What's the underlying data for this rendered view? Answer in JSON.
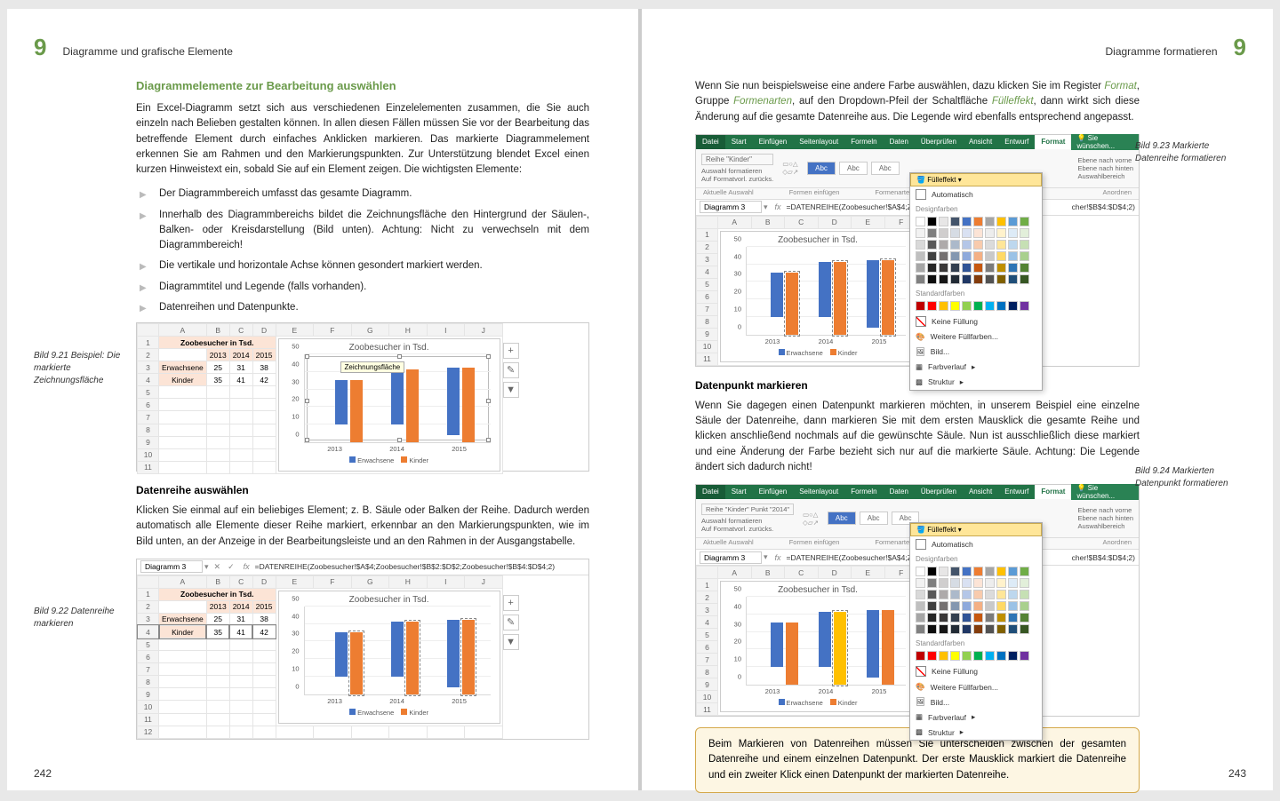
{
  "left": {
    "chapter_num": "9",
    "chapter_title": "Diagramme und grafische Elemente",
    "page_num": "242",
    "heading": "Diagrammelemente zur Bearbeitung auswählen",
    "para1": "Ein Excel-Diagramm setzt sich aus verschiedenen Einzelelementen zusammen, die Sie auch einzeln nach Belieben gestalten können. In allen diesen Fällen müssen Sie vor der Bearbeitung das betreffende Element durch einfaches Anklicken markieren. Das markierte Diagrammelement erkennen Sie am Rahmen und den Markierungspunkten. Zur Unterstützung blendet Excel einen kurzen Hinweistext ein, sobald Sie auf ein Element zeigen. Die wichtigsten Elemente:",
    "bullets": [
      "Der Diagrammbereich umfasst das gesamte Diagramm.",
      "Innerhalb des Diagrammbereichs bildet die Zeichnungsfläche den Hintergrund der Säulen-, Balken- oder Kreisdarstellung (Bild unten). Achtung: Nicht zu verwechseln mit dem Diagrammbereich!",
      "Die vertikale und horizontale Achse können gesondert markiert werden.",
      "Diagrammtitel und Legende (falls vorhanden).",
      "Datenreihen und Datenpunkte."
    ],
    "caption1": "Bild 9.21 Beispiel: Die markierte Zeichnungsfläche",
    "sub1": "Datenreihe auswählen",
    "para2": "Klicken Sie einmal auf ein beliebiges Element; z. B. Säule oder Balken der Reihe. Dadurch werden automatisch alle Elemente dieser Reihe markiert, erkennbar an den Markierungspunkten, wie im Bild unten, an der Anzeige in der Bearbeitungsleiste und an den Rahmen in der Ausgangstabelle.",
    "caption2": "Bild 9.22 Datenreihe markieren",
    "fig": {
      "table_title": "Zoobesucher in Tsd.",
      "years": [
        "2013",
        "2014",
        "2015"
      ],
      "rows": [
        {
          "label": "Erwachsene",
          "vals": [
            "25",
            "31",
            "38"
          ]
        },
        {
          "label": "Kinder",
          "vals": [
            "35",
            "41",
            "42"
          ]
        }
      ],
      "chart_title": "Zoobesucher in Tsd.",
      "y_ticks": [
        "0",
        "10",
        "20",
        "30",
        "40",
        "50"
      ],
      "tooltip": "Zeichnungsfläche",
      "legend": [
        "Erwachsene",
        "Kinder"
      ],
      "name_box": "Diagramm 3",
      "formula": "=DATENREIHE(Zoobesucher!$A$4;Zoobesucher!$B$2:$D$2;Zoobesucher!$B$4:$D$4;2)",
      "colors": {
        "s1": "#4472c4",
        "s2": "#ed7d31"
      },
      "bar_heights": {
        "s1": [
          50,
          62,
          76
        ],
        "s2": [
          70,
          82,
          84
        ]
      }
    }
  },
  "right": {
    "chapter_num": "9",
    "chapter_title": "Diagramme formatieren",
    "page_num": "243",
    "para1_pre": "Wenn Sie nun beispielsweise eine andere Farbe auswählen, dazu klicken Sie im Register ",
    "para1_em1": "Format",
    "para1_mid1": ", Gruppe ",
    "para1_em2": "Formenarten",
    "para1_mid2": ", auf den Dropdown-Pfeil der Schaltfläche ",
    "para1_em3": "Fülleffekt",
    "para1_post": ", dann wirkt sich diese Änderung auf die gesamte Datenreihe aus. Die Legende wird ebenfalls entsprechend angepasst.",
    "caption1": "Bild 9.23 Markierte Datenreihe formatieren",
    "sub1": "Datenpunkt markieren",
    "para2": "Wenn Sie dagegen einen Datenpunkt markieren möchten, in unserem Beispiel eine einzelne Säule der Datenreihe, dann markieren Sie mit dem ersten Mausklick die gesamte Reihe und klicken anschließend nochmals auf die gewünschte Säule. Nun ist ausschließlich diese markiert und eine Änderung der Farbe bezieht sich nur auf die markierte Säule. Achtung: Die Legende ändert sich dadurch nicht!",
    "caption2": "Bild 9.24 Markierten Datenpunkt formatieren",
    "callout": "Beim Markieren von Datenreihen müssen Sie unterscheiden zwischen der gesamten Datenreihe und einem einzelnen Datenpunkt. Der erste Mausklick markiert die Datenreihe und ein zweiter Klick einen Datenpunkt der markierten Datenreihe.",
    "ribbon": {
      "tabs": [
        "Datei",
        "Start",
        "Einfügen",
        "Seitenlayout",
        "Formeln",
        "Daten",
        "Überprüfen",
        "Ansicht",
        "Entwurf",
        "Format"
      ],
      "tell": "Sie wünschen...",
      "reihe1": "Reihe \"Kinder\"",
      "reihe2": "Reihe \"Kinder\" Punkt \"2014\"",
      "opt1": "Auswahl formatieren",
      "opt2": "Auf Formatvorl. zurücks.",
      "abc": "Abc",
      "group1": "Aktuelle Auswahl",
      "group2": "Formen einfügen",
      "group3": "Formenarten",
      "group4": "Anordnen",
      "fulleffekt": "Fülleffekt",
      "automatisch": "Automatisch",
      "design": "Designfarben",
      "standard": "Standardfarben",
      "keine": "Keine Füllung",
      "weitere": "Weitere Füllfarben...",
      "bild": "Bild...",
      "farbverlauf": "Farbverlauf",
      "struktur": "Struktur",
      "ebene1": "Ebene nach vorne",
      "ebene2": "Ebene nach hinten",
      "auswahlb": "Auswahlbereich",
      "formula": "=DATENREIHE(Zoobesucher!$A$4;Zoob",
      "formula_right": "cher!$B$4:$D$4;2)"
    },
    "fig": {
      "chart_title": "Zoobesucher in Tsd.",
      "y_ticks": [
        "0",
        "10",
        "20",
        "30",
        "40",
        "50"
      ],
      "years": [
        "2013",
        "2014",
        "2015"
      ],
      "legend": [
        "Erwachsene",
        "Kinder"
      ],
      "name_box": "Diagramm 3",
      "bar_heights": {
        "s1": [
          50,
          62,
          76
        ],
        "s2": [
          70,
          82,
          84
        ]
      },
      "colors": {
        "s1": "#4472c4",
        "s2": "#ed7d31",
        "highlight": "#ffc000"
      }
    },
    "theme_colors": [
      "#ffffff",
      "#000000",
      "#e7e6e6",
      "#44546a",
      "#4472c4",
      "#ed7d31",
      "#a5a5a5",
      "#ffc000",
      "#5b9bd5",
      "#70ad47"
    ],
    "theme_tints": [
      [
        "#f2f2f2",
        "#7f7f7f",
        "#d0cece",
        "#d6dce4",
        "#d9e1f2",
        "#fce4d6",
        "#ededed",
        "#fff2cc",
        "#ddebf7",
        "#e2efda"
      ],
      [
        "#d9d9d9",
        "#595959",
        "#aeaaaa",
        "#acb9ca",
        "#b4c6e7",
        "#f8cbad",
        "#dbdbdb",
        "#ffe699",
        "#bdd7ee",
        "#c6e0b4"
      ],
      [
        "#bfbfbf",
        "#404040",
        "#757171",
        "#8497b0",
        "#8ea9db",
        "#f4b084",
        "#c9c9c9",
        "#ffd966",
        "#9bc2e6",
        "#a9d08e"
      ],
      [
        "#a6a6a6",
        "#262626",
        "#3a3838",
        "#333f4f",
        "#305496",
        "#c65911",
        "#7b7b7b",
        "#bf8f00",
        "#2f75b5",
        "#548235"
      ],
      [
        "#808080",
        "#0d0d0d",
        "#161616",
        "#222b35",
        "#203764",
        "#833c0c",
        "#525252",
        "#806000",
        "#1f4e78",
        "#375623"
      ]
    ],
    "standard_colors": [
      "#c00000",
      "#ff0000",
      "#ffc000",
      "#ffff00",
      "#92d050",
      "#00b050",
      "#00b0f0",
      "#0070c0",
      "#002060",
      "#7030a0"
    ]
  }
}
